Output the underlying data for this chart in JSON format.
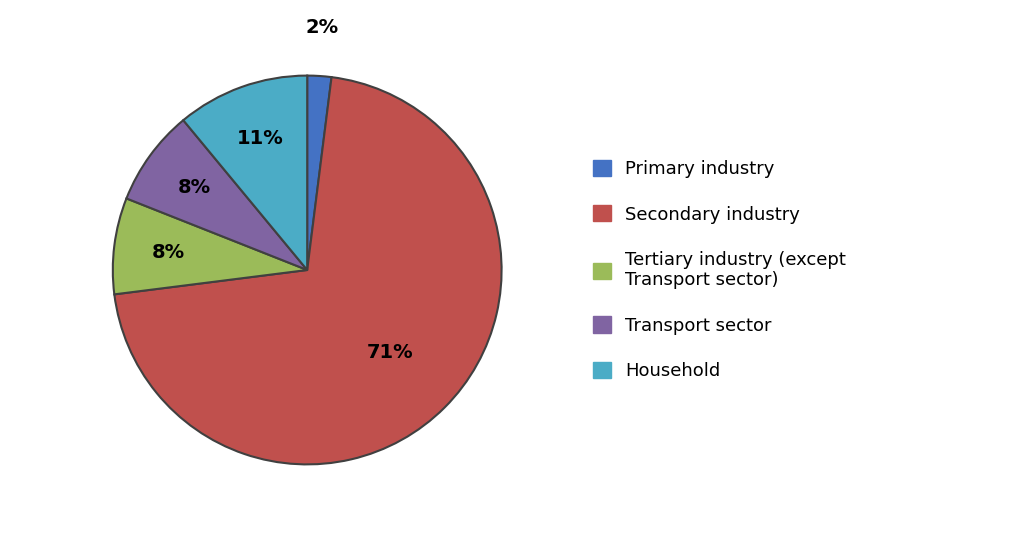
{
  "labels": [
    "Primary industry",
    "Secondary industry",
    "Tertiary industry (except\nTransport sector)",
    "Transport sector",
    "Household"
  ],
  "values": [
    2,
    71,
    8,
    8,
    11
  ],
  "colors": [
    "#4472C4",
    "#C0504D",
    "#9BBB59",
    "#8064A2",
    "#4BACC6"
  ],
  "pct_labels": [
    "2%",
    "71%",
    "8%",
    "8%",
    "11%"
  ],
  "legend_labels": [
    "Primary industry",
    "Secondary industry",
    "Tertiary industry (except\nTransport sector)",
    "Transport sector",
    "Household"
  ],
  "background_color": "#FFFFFF",
  "text_color": "#000000",
  "fontsize": 14,
  "legend_fontsize": 13,
  "border_color": "#404040",
  "border_width": 1.5
}
